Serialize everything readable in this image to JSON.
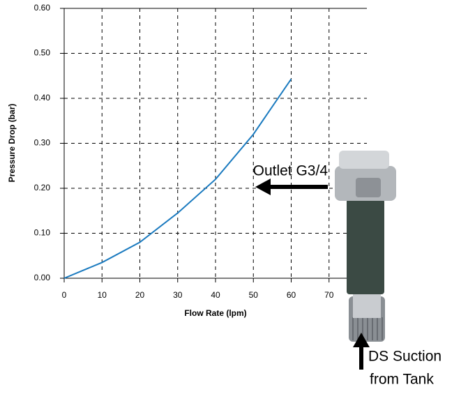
{
  "chart_data": {
    "type": "line",
    "x_label": "Flow Rate (lpm)",
    "y_label": "Pressure Drop (bar)",
    "x": [
      0,
      10,
      20,
      30,
      40,
      50,
      60
    ],
    "series": [
      {
        "color": "#1a7abf",
        "values": [
          0,
          0.035,
          0.08,
          0.145,
          0.22,
          0.32,
          0.443
        ]
      }
    ],
    "xlim": [
      0,
      80
    ],
    "xticks": [
      0,
      10,
      20,
      30,
      40,
      50,
      60,
      70
    ],
    "ylim": [
      0,
      0.6
    ],
    "yticks": [
      {
        "value": 0,
        "label": "0.00"
      },
      {
        "value": 0.1,
        "label": "0.10"
      },
      {
        "value": 0.2,
        "label": "0.20"
      },
      {
        "value": 0.3,
        "label": "0.30"
      },
      {
        "value": 0.4,
        "label": "0.40"
      },
      {
        "value": 0.5,
        "label": "0.50"
      },
      {
        "value": 0.6,
        "label": "0.60"
      }
    ],
    "grid": true,
    "annotations": [
      "Outlet G3/4",
      "DS Suction",
      "from Tank"
    ]
  }
}
